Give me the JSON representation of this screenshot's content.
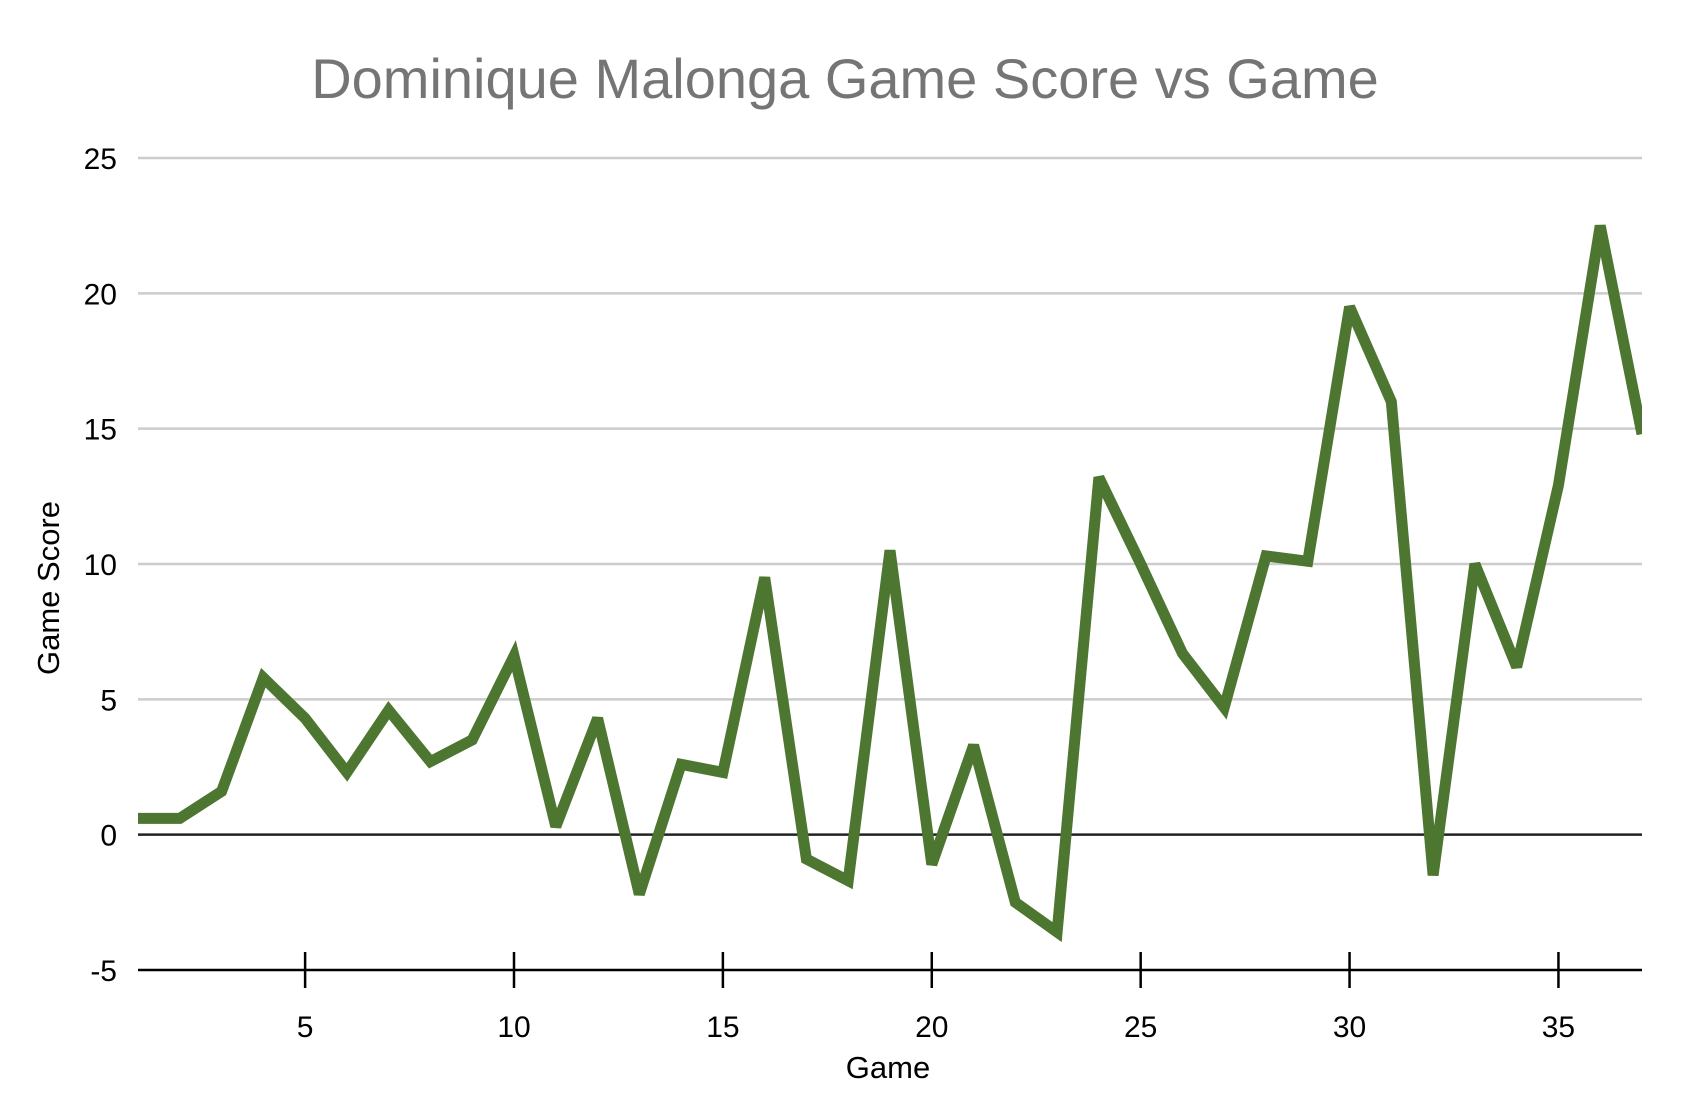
{
  "chart_data": {
    "type": "line",
    "title": "Dominique Malonga Game Score vs Game",
    "xlabel": "Game",
    "ylabel": "Game Score",
    "xlim": [
      1,
      37
    ],
    "ylim": [
      -5,
      25
    ],
    "x_ticks": [
      5,
      10,
      15,
      20,
      25,
      30,
      35
    ],
    "y_ticks": [
      -5,
      0,
      5,
      10,
      15,
      20,
      25
    ],
    "grid": true,
    "legend": "none",
    "colors": {
      "series": "#4d7631",
      "title": "#757575",
      "grid": "#cccccc"
    },
    "series": [
      {
        "x": [
          1,
          2,
          3,
          4,
          5,
          6,
          7,
          8,
          9,
          10,
          11,
          12,
          13,
          14,
          15,
          16,
          17,
          18,
          19,
          20,
          21,
          22,
          23,
          24,
          25,
          26,
          27,
          28,
          29,
          30,
          31,
          32,
          33,
          34,
          35,
          36,
          37
        ],
        "values": [
          0.6,
          0.6,
          1.6,
          5.8,
          4.3,
          2.3,
          4.6,
          2.7,
          3.5,
          6.6,
          0.3,
          4.3,
          -2.2,
          2.6,
          2.3,
          9.5,
          -0.9,
          -1.7,
          10.5,
          -1.1,
          3.3,
          -2.5,
          -3.6,
          13.2,
          10.0,
          6.7,
          4.7,
          10.3,
          10.1,
          19.5,
          16.0,
          -1.5,
          10.0,
          6.2,
          12.9,
          22.5,
          14.8
        ]
      }
    ]
  }
}
